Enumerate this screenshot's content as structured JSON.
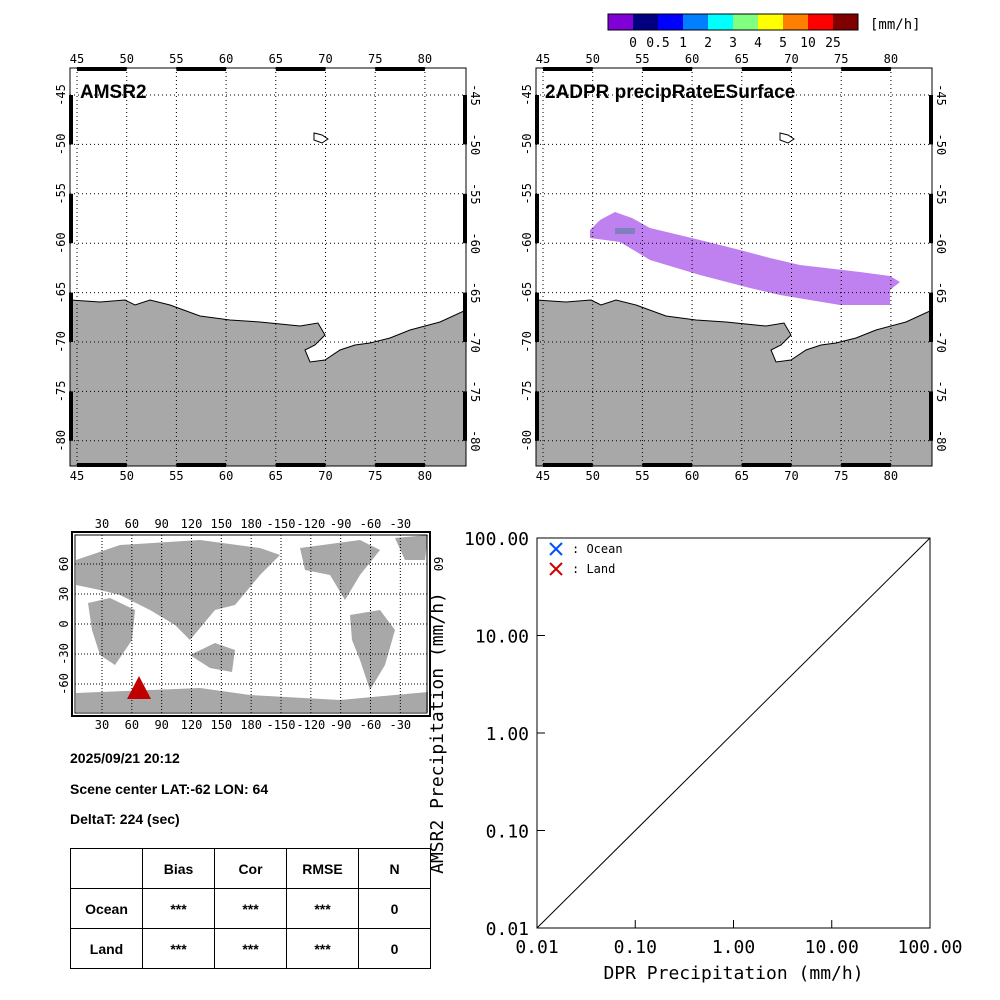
{
  "colorbar": {
    "unit": "[mm/h]",
    "colors": [
      "#8000d8",
      "#000080",
      "#0000ff",
      "#0080ff",
      "#00ffff",
      "#80ff80",
      "#ffff00",
      "#ff8000",
      "#ff0000",
      "#800000"
    ],
    "labels": [
      "0",
      "0.5",
      "1",
      "2",
      "3",
      "4",
      "5",
      "10",
      "25"
    ]
  },
  "maps": {
    "left_title": "AMSR2",
    "right_title": "2ADPR precipRateESurface",
    "lon_ticks": [
      "45",
      "50",
      "55",
      "60",
      "65",
      "70",
      "75",
      "80"
    ],
    "lat_ticks": [
      "-45",
      "-50",
      "-55",
      "-60",
      "-65",
      "-70",
      "-75",
      "-80"
    ],
    "land_color": "#a8a8a8",
    "precip_color": "#bf80f0"
  },
  "world_map": {
    "lon_ticks": [
      "30",
      "60",
      "90",
      "120",
      "150",
      "180",
      "-150",
      "-120",
      "-90",
      "-60",
      "-30"
    ],
    "lat_ticks": [
      "60",
      "30",
      "0",
      "-30",
      "-60"
    ],
    "right_lat_tick": "60",
    "marker_color": "#c00000"
  },
  "info": {
    "datetime": "2025/09/21 20:12",
    "scene_center": "Scene center LAT:-62   LON:  64",
    "deltat": "DeltaT:  224 (sec)"
  },
  "stats_table": {
    "headers": [
      "",
      "Bias",
      "Cor",
      "RMSE",
      "N"
    ],
    "rows": [
      [
        "Ocean",
        "***",
        "***",
        "***",
        "0"
      ],
      [
        "Land",
        "***",
        "***",
        "***",
        "0"
      ]
    ]
  },
  "chart_data": {
    "type": "scatter",
    "xlabel": "DPR Precipitation (mm/h)",
    "ylabel": "AMSR2 Precipitation (mm/h)",
    "xscale": "log",
    "yscale": "log",
    "xlim": [
      0.01,
      100
    ],
    "ylim": [
      0.01,
      100
    ],
    "xticks": [
      "0.01",
      "0.10",
      "1.00",
      "10.00",
      "100.00"
    ],
    "yticks": [
      "0.01",
      "0.10",
      "1.00",
      "10.00",
      "100.00"
    ],
    "legend": [
      {
        "label": ": Ocean",
        "color": "#0050ff",
        "marker": "x"
      },
      {
        "label": ": Land",
        "color": "#d00000",
        "marker": "x"
      }
    ],
    "legend_position": "top-left",
    "series": [
      {
        "name": "Ocean",
        "x": [],
        "y": []
      },
      {
        "name": "Land",
        "x": [],
        "y": []
      }
    ],
    "reference_line": "y = x"
  }
}
